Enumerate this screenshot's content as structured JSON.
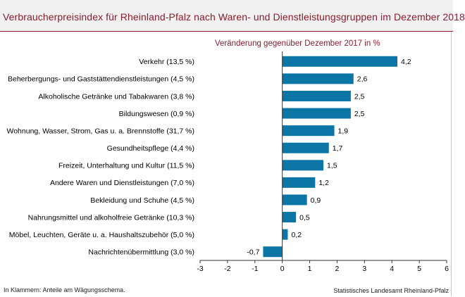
{
  "header": {
    "title": "Verbraucherpreisindex für Rheinland-Pfalz nach Waren- und Dienstleistungsgruppen im Dezember 2018"
  },
  "subtitle": "Veränderung  gegenüber Dezember 2017 in %",
  "footnote": "In Klammern: Anteile am Wägungsschema.",
  "source": "Statistisches Landesamt Rheinland-Pfalz",
  "colors": {
    "bar": "#0b76a6",
    "title": "#8b1c2c",
    "axis": "#333333"
  },
  "chart_data": {
    "type": "bar",
    "orientation": "horizontal",
    "title": "Verbraucherpreisindex für Rheinland-Pfalz nach Waren- und Dienstleistungsgruppen im Dezember 2018",
    "xlabel": "Veränderung  gegenüber Dezember 2017 in %",
    "ylabel": "",
    "xlim": [
      -3,
      6
    ],
    "xticks": [
      -3,
      -2,
      -1,
      0,
      1,
      2,
      3,
      4,
      5,
      6
    ],
    "grid": false,
    "categories": [
      "Verkehr (13,5 %)",
      "Beherbergungs- und Gaststättendienstleistungen (4,5 %)",
      "Alkoholische Getränke und Tabakwaren (3,8 %)",
      "Bildungswesen (0,9 %)",
      "Wohnung, Wasser, Strom, Gas u. a. Brennstoffe (31,7 %)",
      "Gesundheitspflege (4,4 %)",
      "Freizeit, Unterhaltung und Kultur (11,5 %)",
      "Andere Waren und Dienstleistungen (7,0 %)",
      "Bekleidung und Schuhe (4,5 %)",
      "Nahrungsmittel und alkoholfreie Getränke (10,3 %)",
      "Möbel, Leuchten, Geräte u. a. Haushaltszubehör  (5,0 %)",
      "Nachrichtenübermittlung (3,0 %)"
    ],
    "values": [
      4.2,
      2.6,
      2.5,
      2.5,
      1.9,
      1.7,
      1.5,
      1.2,
      0.9,
      0.5,
      0.2,
      -0.7
    ],
    "value_labels": [
      "4,2",
      "2,6",
      "2,5",
      "2,5",
      "1,9",
      "1,7",
      "1,5",
      "1,2",
      "0,9",
      "0,5",
      "0,2",
      "-0,7"
    ]
  }
}
